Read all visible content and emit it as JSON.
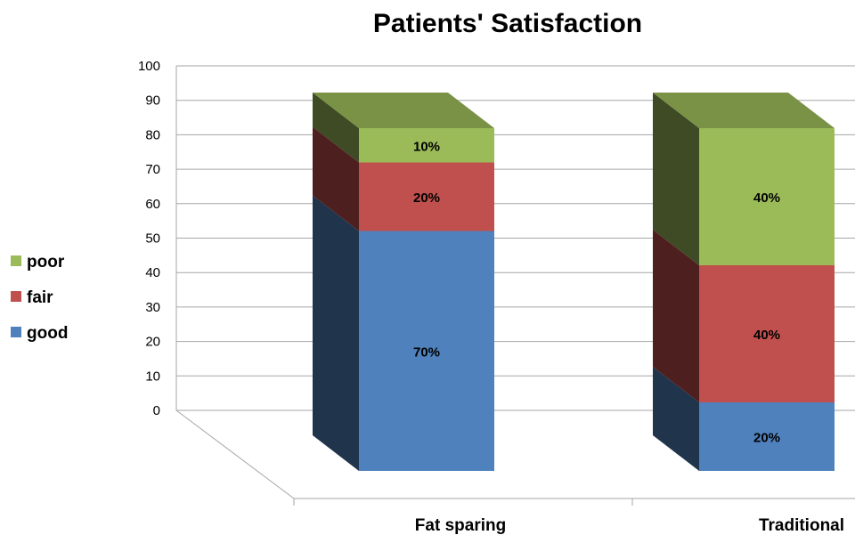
{
  "chart_data": {
    "type": "bar",
    "stacked": true,
    "three_d": true,
    "title": "Patients' Satisfaction",
    "xlabel": "",
    "ylabel": "",
    "categories": [
      "Fat sparing",
      "Traditional"
    ],
    "series": [
      {
        "name": "good",
        "values": [
          70,
          20
        ],
        "labels": [
          "70%",
          "20%"
        ],
        "color": "#4f81bd"
      },
      {
        "name": "fair",
        "values": [
          20,
          40
        ],
        "labels": [
          "20%",
          "40%"
        ],
        "color": "#c0504d"
      },
      {
        "name": "poor",
        "values": [
          10,
          40
        ],
        "labels": [
          "10%",
          "40%"
        ],
        "color": "#9bbb59"
      }
    ],
    "ylim": [
      0,
      100
    ],
    "yticks": [
      "0",
      "10",
      "20",
      "30",
      "40",
      "50",
      "60",
      "70",
      "80",
      "90",
      "100"
    ],
    "grid": true,
    "legend_position": "left"
  }
}
